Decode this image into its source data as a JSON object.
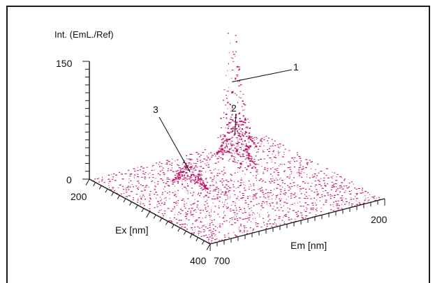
{
  "chart_data": {
    "type": "surface-3d",
    "z_axis": {
      "label": "Int. (EmL./Ref)",
      "ticks": [
        "0",
        "150"
      ],
      "range": [
        0,
        150
      ]
    },
    "x_axis": {
      "label": "Ex [nm]",
      "ticks": [
        "200",
        "400"
      ],
      "range": [
        200,
        400
      ]
    },
    "y_axis": {
      "label": "Em [nm]",
      "ticks": [
        "700",
        "200"
      ],
      "range": [
        700,
        200
      ]
    },
    "peaks": [
      {
        "label": "1",
        "ex": 205,
        "em": 300,
        "intensity": 145
      },
      {
        "label": "2",
        "ex": 250,
        "em": 370,
        "intensity": 70
      },
      {
        "label": "3",
        "ex": 280,
        "em": 550,
        "intensity": 45
      }
    ],
    "colors": {
      "surface": "#c4176a",
      "axis": "#1a1a1a"
    }
  }
}
